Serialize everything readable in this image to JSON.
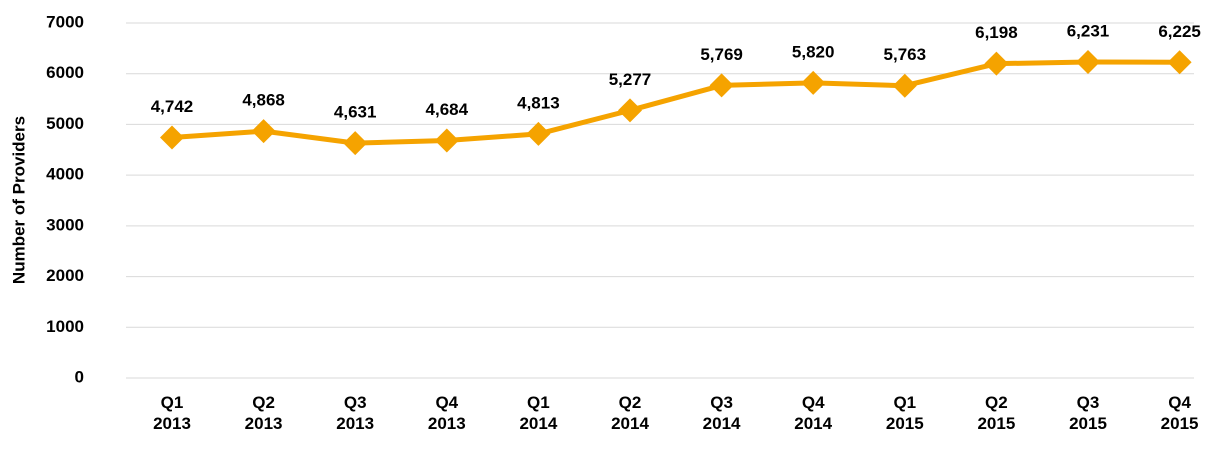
{
  "chart_data": {
    "type": "line",
    "y_axis_label": "Number of Providers",
    "categories": [
      "Q1\n2013",
      "Q2\n2013",
      "Q3\n2013",
      "Q4\n2013",
      "Q1\n2014",
      "Q2\n2014",
      "Q3\n2014",
      "Q4\n2014",
      "Q1\n2015",
      "Q2\n2015",
      "Q3\n2015",
      "Q4\n2015"
    ],
    "series": [
      {
        "name": "Providers",
        "color": "#f5a300",
        "values": [
          4742,
          4868,
          4631,
          4684,
          4813,
          5277,
          5769,
          5820,
          5763,
          6198,
          6231,
          6225
        ],
        "value_labels": [
          "4,742",
          "4,868",
          "4,631",
          "4,684",
          "4,813",
          "5,277",
          "5,769",
          "5,820",
          "5,763",
          "6,198",
          "6,231",
          "6,225"
        ]
      }
    ],
    "ylim": [
      0,
      7000
    ],
    "yticks": [
      0,
      1000,
      2000,
      3000,
      4000,
      5000,
      6000,
      7000
    ],
    "grid": true
  }
}
